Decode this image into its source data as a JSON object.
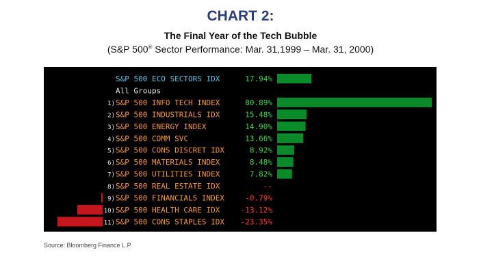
{
  "title": "CHART 2:",
  "subtitle": "The Final Year of the Tech Bubble",
  "subtitle2_pre": "(S&P 500",
  "subtitle2_reg": "®",
  "subtitle2_post": " Sector Performance: Mar. 31,1999 – Mar. 31, 2000)",
  "source": "Source: Bloomberg Finance L.P.",
  "chart_data": {
    "type": "bar",
    "orientation": "horizontal",
    "summary_row": {
      "label": "S&P 500 ECO SECTORS IDX",
      "value": 17.94,
      "text": "17.94%"
    },
    "group_label": "All Groups",
    "categories": [
      "S&P 500 INFO TECH INDEX",
      "S&P 500 INDUSTRIALS IDX",
      "S&P 500 ENERGY INDEX",
      "S&P 500 COMM SVC",
      "S&P 500 CONS DISCRET IDX",
      "S&P 500 MATERIALS INDEX",
      "S&P 500 UTILITIES INDEX",
      "S&P 500 REAL ESTATE IDX",
      "S&P 500 FINANCIALS INDEX",
      "S&P 500 HEALTH CARE IDX",
      "S&P 500 CONS STAPLES IDX"
    ],
    "rank_labels": [
      "1)",
      "2)",
      "3)",
      "4)",
      "5)",
      "6)",
      "7)",
      "8)",
      "9)",
      "10)",
      "11)"
    ],
    "values": [
      80.89,
      15.48,
      14.9,
      13.66,
      8.92,
      8.48,
      7.82,
      null,
      -0.79,
      -13.12,
      -23.35
    ],
    "value_labels": [
      "80.89%",
      "15.48%",
      "14.90%",
      "13.66%",
      "8.92%",
      "8.48%",
      "7.82%",
      "--",
      "-0.79%",
      "-13.12%",
      "-23.35%"
    ],
    "colors": {
      "positive_bar": "#0b8a2a",
      "negative_bar": "#c4161c",
      "positive_text": "#3fd44a",
      "negative_text": "#ff3b3b",
      "label_text": "#f59a2e",
      "summary_text": "#5bc8e8",
      "rank_text": "#e8e8e8",
      "group_text": "#e8e8e8"
    }
  }
}
